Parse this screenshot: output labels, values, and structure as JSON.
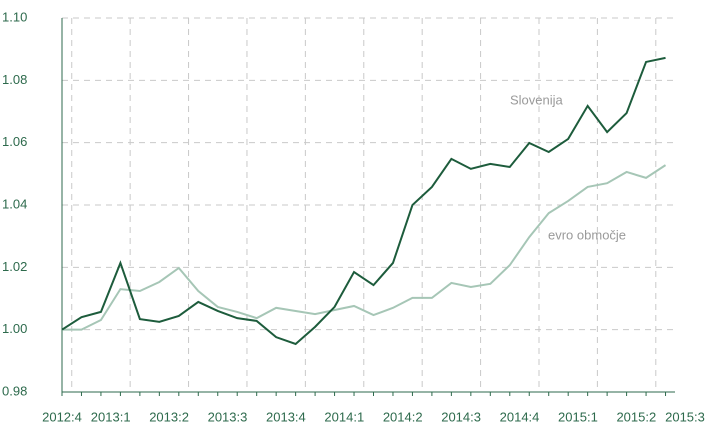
{
  "chart_data": {
    "type": "line",
    "x": [
      0,
      1,
      2,
      3,
      4,
      5,
      6,
      7,
      8,
      9,
      10,
      11,
      12,
      13,
      14,
      15,
      16,
      17,
      18,
      19,
      20,
      21,
      22,
      23,
      24,
      25,
      26,
      27,
      28,
      29,
      30,
      31
    ],
    "series": [
      {
        "name": "Slovenija",
        "color": "#1d5c3c",
        "values": [
          1.0,
          1.004,
          1.0057,
          1.0214,
          1.0034,
          1.0025,
          1.0044,
          1.0089,
          1.006,
          1.0037,
          1.0028,
          0.9976,
          0.9954,
          1.0009,
          1.0073,
          1.0185,
          1.0143,
          1.0214,
          1.04,
          1.0458,
          1.0548,
          1.0516,
          1.0532,
          1.0522,
          1.0599,
          1.057,
          1.0612,
          1.0718,
          1.0634,
          1.0695,
          1.0859,
          1.0872
        ]
      },
      {
        "name": "evro območje",
        "color": "#a6c6b6",
        "values": [
          1.0,
          1.0,
          1.0031,
          1.013,
          1.0124,
          1.0153,
          1.0198,
          1.0124,
          1.0073,
          1.0057,
          1.0037,
          1.007,
          1.006,
          1.005,
          1.0063,
          1.0076,
          1.0047,
          1.007,
          1.0102,
          1.0102,
          1.015,
          1.0137,
          1.0147,
          1.0207,
          1.0297,
          1.0374,
          1.0413,
          1.0458,
          1.047,
          1.0506,
          1.0487,
          1.0528
        ]
      }
    ],
    "xlim": [
      0,
      32
    ],
    "xticks": [
      {
        "value": 0,
        "label": "2012:4"
      },
      {
        "value": 2.5,
        "label": "2013:1"
      },
      {
        "value": 5.5,
        "label": "2013:2"
      },
      {
        "value": 8.5,
        "label": "2013:3"
      },
      {
        "value": 11.5,
        "label": "2013:4"
      },
      {
        "value": 14.5,
        "label": "2014:1"
      },
      {
        "value": 17.5,
        "label": "2014:2"
      },
      {
        "value": 20.5,
        "label": "2014:3"
      },
      {
        "value": 23.5,
        "label": "2014:4"
      },
      {
        "value": 26.5,
        "label": "2015:1"
      },
      {
        "value": 29.5,
        "label": "2015:2"
      },
      {
        "value": 32,
        "label": "2015:3"
      }
    ],
    "ylim": [
      0.98,
      1.1
    ],
    "yticks": [
      {
        "value": 0.98,
        "label": "0.98"
      },
      {
        "value": 1.0,
        "label": "1.00"
      },
      {
        "value": 1.02,
        "label": "1.02"
      },
      {
        "value": 1.04,
        "label": "1.04"
      },
      {
        "value": 1.06,
        "label": "1.06"
      },
      {
        "value": 1.08,
        "label": "1.08"
      },
      {
        "value": 1.1,
        "label": "1.10"
      }
    ],
    "grid": true
  }
}
